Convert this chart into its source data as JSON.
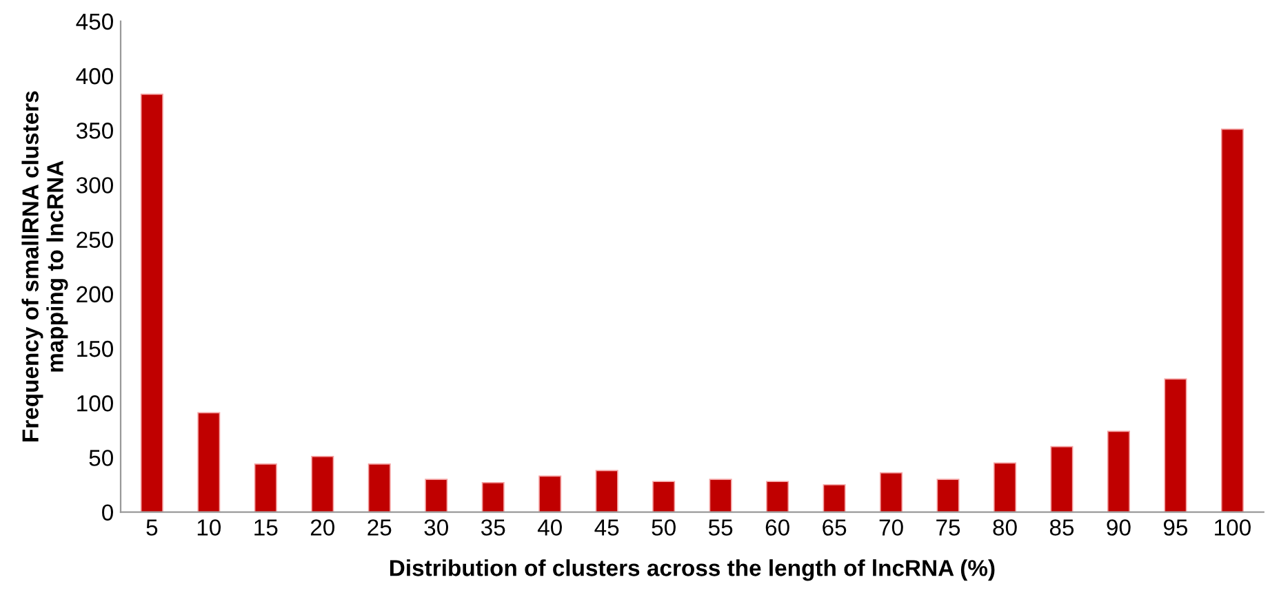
{
  "chart_data": {
    "type": "bar",
    "xlabel": "Distribution of clusters across the length of lncRNA (%)",
    "ylabel": "Frequency of smallRNA clusters mapping to lncRNA",
    "categories": [
      "5",
      "10",
      "15",
      "20",
      "25",
      "30",
      "35",
      "40",
      "45",
      "50",
      "55",
      "60",
      "65",
      "70",
      "75",
      "80",
      "85",
      "90",
      "95",
      "100"
    ],
    "values": [
      383,
      91,
      44,
      51,
      44,
      30,
      27,
      33,
      38,
      28,
      30,
      28,
      25,
      36,
      30,
      45,
      60,
      74,
      122,
      351
    ],
    "color": "#c00000",
    "ylim": [
      0,
      450
    ],
    "yticks": [
      0,
      50,
      100,
      150,
      200,
      250,
      300,
      350,
      400,
      450
    ],
    "grid": false,
    "legend": false
  }
}
